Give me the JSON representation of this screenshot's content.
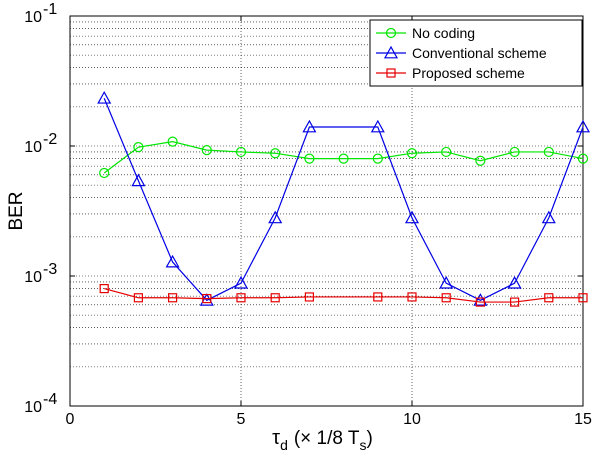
{
  "chart_data": {
    "type": "line",
    "xlabel": "τ",
    "xlabel_sub": "d",
    "xlabel_rest": "(× 1/8 T",
    "xlabel_rest_sub": "s",
    "xlabel_close": ")",
    "ylabel": "BER",
    "xlim": [
      0,
      15
    ],
    "ylim": [
      0.0001,
      0.1
    ],
    "yscale": "log",
    "grid": true,
    "legend_position": "top-right",
    "x_ticks": [
      {
        "value": 0,
        "label": "0"
      },
      {
        "value": 5,
        "label": "5"
      },
      {
        "value": 10,
        "label": "10"
      },
      {
        "value": 15,
        "label": "15"
      }
    ],
    "y_ticks": [
      {
        "value": 0.0001,
        "base": "10",
        "exp": "-4"
      },
      {
        "value": 0.001,
        "base": "10",
        "exp": "-3"
      },
      {
        "value": 0.01,
        "base": "10",
        "exp": "-2"
      },
      {
        "value": 0.1,
        "base": "10",
        "exp": "-1"
      }
    ],
    "x": [
      1,
      2,
      3,
      4,
      5,
      6,
      7,
      8,
      9,
      10,
      11,
      12,
      13,
      14,
      15
    ],
    "series": [
      {
        "name": "No coding",
        "color": "#00e600",
        "marker": "circle",
        "x": [
          1,
          2,
          3,
          4,
          5,
          6,
          7,
          8,
          9,
          10,
          11,
          12,
          13,
          14,
          15
        ],
        "values": [
          0.0062,
          0.0098,
          0.0108,
          0.0093,
          0.009,
          0.0088,
          0.008,
          0.008,
          0.008,
          0.0088,
          0.009,
          0.0077,
          0.009,
          0.009,
          0.008
        ]
      },
      {
        "name": "Conventional scheme",
        "color": "#0000e6",
        "marker": "triangle",
        "x": [
          1,
          2,
          3,
          4,
          5,
          6,
          7,
          9,
          10,
          11,
          12,
          13,
          14,
          15
        ],
        "values": [
          0.0233,
          0.0054,
          0.00128,
          0.00065,
          0.00088,
          0.0028,
          0.014,
          0.014,
          0.0028,
          0.00088,
          0.00065,
          0.00088,
          0.0028,
          0.014
        ]
      },
      {
        "name": "Proposed scheme",
        "color": "#e60000",
        "marker": "square",
        "x": [
          1,
          2,
          3,
          4,
          5,
          6,
          7,
          9,
          10,
          11,
          12,
          13,
          14,
          15
        ],
        "values": [
          0.0008,
          0.00068,
          0.00068,
          0.00067,
          0.00068,
          0.00068,
          0.00069,
          0.00069,
          0.00069,
          0.00068,
          0.00063,
          0.00063,
          0.00068,
          0.00068
        ]
      }
    ]
  }
}
